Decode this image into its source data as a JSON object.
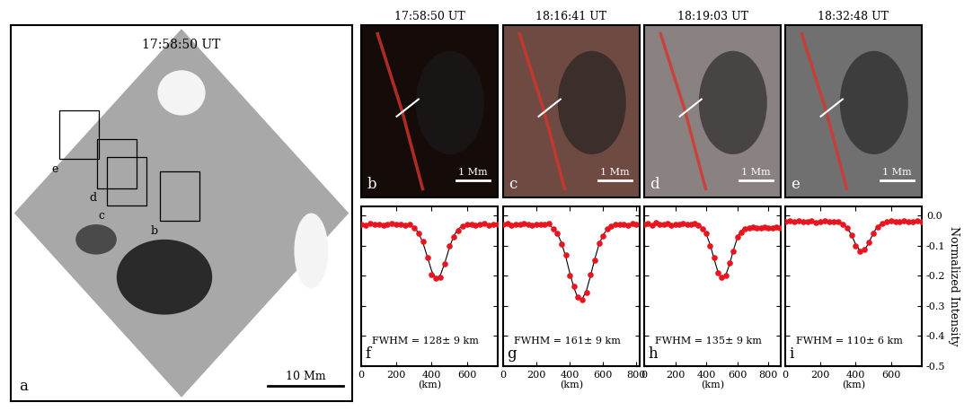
{
  "chart_data": [
    {
      "type": "image",
      "title": "17:58:50 UT",
      "panel_label": "a",
      "scale_bar": "10 Mm",
      "box_labels": [
        "b",
        "c",
        "d",
        "e"
      ]
    },
    {
      "type": "image",
      "title": "17:58:50 UT",
      "panel_label": "b",
      "scale_bar": "1 Mm"
    },
    {
      "type": "image",
      "title": "18:16:41 UT",
      "panel_label": "c",
      "scale_bar": "1 Mm"
    },
    {
      "type": "image",
      "title": "18:19:03 UT",
      "panel_label": "d",
      "scale_bar": "1 Mm"
    },
    {
      "type": "image",
      "title": "18:32:48 UT",
      "panel_label": "e",
      "scale_bar": "1 Mm"
    },
    {
      "type": "scatter",
      "panel_label": "f",
      "xlabel": "(km)",
      "annotations": [
        "FWHM = 128± 9 km"
      ],
      "tick_labels": "x",
      "xlim": [
        0,
        775
      ],
      "xticks": [
        0,
        200,
        400,
        600
      ],
      "ylim": [
        -0.5,
        0.03
      ],
      "yticks": [
        {
          "value": 0.0,
          "label": "0.0"
        },
        {
          "value": -0.1,
          "label": "-0.1"
        },
        {
          "value": -0.2,
          "label": "-0.2"
        },
        {
          "value": -0.3,
          "label": "-0.3"
        },
        {
          "value": -0.4,
          "label": "-0.4"
        },
        {
          "value": -0.5,
          "label": "-0.5"
        }
      ],
      "x": [
        0,
        25,
        50,
        75,
        100,
        125,
        150,
        175,
        200,
        225,
        250,
        275,
        300,
        325,
        350,
        375,
        400,
        425,
        450,
        475,
        500,
        525,
        550,
        575,
        600,
        625,
        650,
        675,
        700,
        725,
        750,
        775
      ],
      "series": [
        {
          "type": "scatter",
          "color": "#e8141e",
          "marker": "o",
          "values": [
            -0.03,
            -0.032,
            -0.028,
            -0.031,
            -0.029,
            -0.033,
            -0.03,
            -0.027,
            -0.031,
            -0.03,
            -0.034,
            -0.029,
            -0.042,
            -0.06,
            -0.085,
            -0.14,
            -0.195,
            -0.208,
            -0.205,
            -0.16,
            -0.1,
            -0.072,
            -0.05,
            -0.036,
            -0.031,
            -0.029,
            -0.033,
            -0.03,
            -0.028,
            -0.032,
            -0.03,
            -0.031
          ]
        },
        {
          "type": "line",
          "color": "#000000",
          "line_style": "solid",
          "values": [
            -0.03,
            -0.03,
            -0.03,
            -0.03,
            -0.03,
            -0.03,
            -0.03,
            -0.03,
            -0.03,
            -0.03,
            -0.03,
            -0.03,
            -0.04,
            -0.057,
            -0.09,
            -0.136,
            -0.184,
            -0.21,
            -0.197,
            -0.157,
            -0.108,
            -0.068,
            -0.045,
            -0.035,
            -0.031,
            -0.03,
            -0.03,
            -0.03,
            -0.03,
            -0.03,
            -0.03,
            -0.03
          ]
        }
      ]
    },
    {
      "type": "scatter",
      "panel_label": "g",
      "xlabel": "(km)",
      "annotations": [
        "FWHM = 161± 9 km"
      ],
      "tick_labels": "x",
      "xlim": [
        0,
        820
      ],
      "xticks": [
        0,
        200,
        400,
        600,
        800
      ],
      "ylim": [
        -0.5,
        0.03
      ],
      "yticks": [
        {
          "value": 0.0,
          "label": "0.0"
        },
        {
          "value": -0.1,
          "label": "-0.1"
        },
        {
          "value": -0.2,
          "label": "-0.2"
        },
        {
          "value": -0.3,
          "label": "-0.3"
        },
        {
          "value": -0.4,
          "label": "-0.4"
        },
        {
          "value": -0.5,
          "label": "-0.5"
        }
      ],
      "x": [
        0,
        25,
        50,
        75,
        100,
        125,
        150,
        175,
        200,
        225,
        250,
        275,
        300,
        325,
        350,
        375,
        400,
        425,
        450,
        475,
        500,
        525,
        550,
        575,
        600,
        625,
        650,
        675,
        700,
        725,
        750,
        775,
        800
      ],
      "series": [
        {
          "type": "scatter",
          "color": "#e8141e",
          "marker": "o",
          "values": [
            -0.03,
            -0.028,
            -0.032,
            -0.029,
            -0.031,
            -0.027,
            -0.03,
            -0.033,
            -0.029,
            -0.031,
            -0.03,
            -0.028,
            -0.045,
            -0.058,
            -0.095,
            -0.13,
            -0.2,
            -0.235,
            -0.27,
            -0.28,
            -0.255,
            -0.195,
            -0.15,
            -0.092,
            -0.068,
            -0.045,
            -0.036,
            -0.031,
            -0.029,
            -0.03,
            -0.032,
            -0.028,
            -0.03
          ]
        },
        {
          "type": "line",
          "color": "#000000",
          "line_style": "solid",
          "values": [
            -0.03,
            -0.03,
            -0.03,
            -0.03,
            -0.03,
            -0.03,
            -0.03,
            -0.03,
            -0.03,
            -0.03,
            -0.03,
            -0.03,
            -0.043,
            -0.06,
            -0.09,
            -0.135,
            -0.19,
            -0.24,
            -0.275,
            -0.277,
            -0.25,
            -0.2,
            -0.145,
            -0.098,
            -0.065,
            -0.046,
            -0.037,
            -0.03,
            -0.03,
            -0.03,
            -0.03,
            -0.03,
            -0.03
          ]
        }
      ]
    },
    {
      "type": "scatter",
      "panel_label": "h",
      "xlabel": "(km)",
      "annotations": [
        "FWHM = 135± 9 km"
      ],
      "tick_labels": "x",
      "xlim": [
        0,
        880
      ],
      "xticks": [
        0,
        200,
        400,
        600,
        800
      ],
      "ylim": [
        -0.5,
        0.03
      ],
      "yticks": [
        {
          "value": 0.0,
          "label": "0.0"
        },
        {
          "value": -0.1,
          "label": "-0.1"
        },
        {
          "value": -0.2,
          "label": "-0.2"
        },
        {
          "value": -0.3,
          "label": "-0.3"
        },
        {
          "value": -0.4,
          "label": "-0.4"
        },
        {
          "value": -0.5,
          "label": "-0.5"
        }
      ],
      "x": [
        0,
        25,
        50,
        75,
        100,
        125,
        150,
        175,
        200,
        225,
        250,
        275,
        300,
        325,
        350,
        375,
        400,
        425,
        450,
        475,
        500,
        525,
        550,
        575,
        600,
        625,
        650,
        675,
        700,
        725,
        750,
        775,
        800,
        825,
        850,
        875
      ],
      "series": [
        {
          "type": "scatter",
          "color": "#e8141e",
          "marker": "o",
          "values": [
            -0.03,
            -0.028,
            -0.032,
            -0.025,
            -0.03,
            -0.031,
            -0.027,
            -0.033,
            -0.029,
            -0.03,
            -0.026,
            -0.031,
            -0.03,
            -0.028,
            -0.034,
            -0.045,
            -0.06,
            -0.1,
            -0.14,
            -0.19,
            -0.205,
            -0.2,
            -0.158,
            -0.12,
            -0.07,
            -0.055,
            -0.043,
            -0.04,
            -0.038,
            -0.042,
            -0.04,
            -0.039,
            -0.041,
            -0.04,
            -0.038,
            -0.04
          ]
        },
        {
          "type": "line",
          "color": "#000000",
          "line_style": "solid",
          "values": [
            -0.03,
            -0.03,
            -0.03,
            -0.03,
            -0.03,
            -0.03,
            -0.03,
            -0.03,
            -0.03,
            -0.03,
            -0.03,
            -0.03,
            -0.03,
            -0.03,
            -0.03,
            -0.043,
            -0.062,
            -0.097,
            -0.143,
            -0.187,
            -0.21,
            -0.199,
            -0.162,
            -0.115,
            -0.075,
            -0.05,
            -0.042,
            -0.04,
            -0.04,
            -0.04,
            -0.04,
            -0.04,
            -0.04,
            -0.04,
            -0.04,
            -0.04
          ]
        }
      ]
    },
    {
      "type": "scatter",
      "panel_label": "i",
      "xlabel": "(km)",
      "ylabel": "Normalized Intensity",
      "annotations": [
        "FWHM = 110± 6 km"
      ],
      "tick_labels": true,
      "xlim": [
        0,
        775
      ],
      "xticks": [
        0,
        200,
        400,
        600
      ],
      "ylim": [
        -0.5,
        0.03
      ],
      "yticks": [
        {
          "value": 0.0,
          "label": "0.0"
        },
        {
          "value": -0.1,
          "label": "-0.1"
        },
        {
          "value": -0.2,
          "label": "-0.2"
        },
        {
          "value": -0.3,
          "label": "-0.3"
        },
        {
          "value": -0.4,
          "label": "-0.4"
        },
        {
          "value": -0.5,
          "label": "-0.5"
        }
      ],
      "x": [
        0,
        25,
        50,
        75,
        100,
        125,
        150,
        175,
        200,
        225,
        250,
        275,
        300,
        325,
        350,
        375,
        400,
        425,
        450,
        475,
        500,
        525,
        550,
        575,
        600,
        625,
        650,
        675,
        700,
        725,
        750,
        775
      ],
      "series": [
        {
          "type": "scatter",
          "color": "#e8141e",
          "marker": "o",
          "values": [
            -0.02,
            -0.018,
            -0.022,
            -0.019,
            -0.021,
            -0.02,
            -0.017,
            -0.023,
            -0.02,
            -0.019,
            -0.021,
            -0.02,
            -0.022,
            -0.03,
            -0.04,
            -0.065,
            -0.1,
            -0.12,
            -0.113,
            -0.088,
            -0.06,
            -0.038,
            -0.027,
            -0.02,
            -0.018,
            -0.021,
            -0.02,
            -0.019,
            -0.022,
            -0.02,
            -0.018,
            -0.02
          ]
        },
        {
          "type": "line",
          "color": "#000000",
          "line_style": "solid",
          "values": [
            -0.02,
            -0.02,
            -0.02,
            -0.02,
            -0.02,
            -0.02,
            -0.02,
            -0.02,
            -0.02,
            -0.02,
            -0.02,
            -0.02,
            -0.02,
            -0.027,
            -0.039,
            -0.064,
            -0.096,
            -0.118,
            -0.115,
            -0.09,
            -0.058,
            -0.036,
            -0.026,
            -0.02,
            -0.02,
            -0.02,
            -0.02,
            -0.02,
            -0.02,
            -0.02,
            -0.02,
            -0.02
          ]
        }
      ]
    }
  ]
}
